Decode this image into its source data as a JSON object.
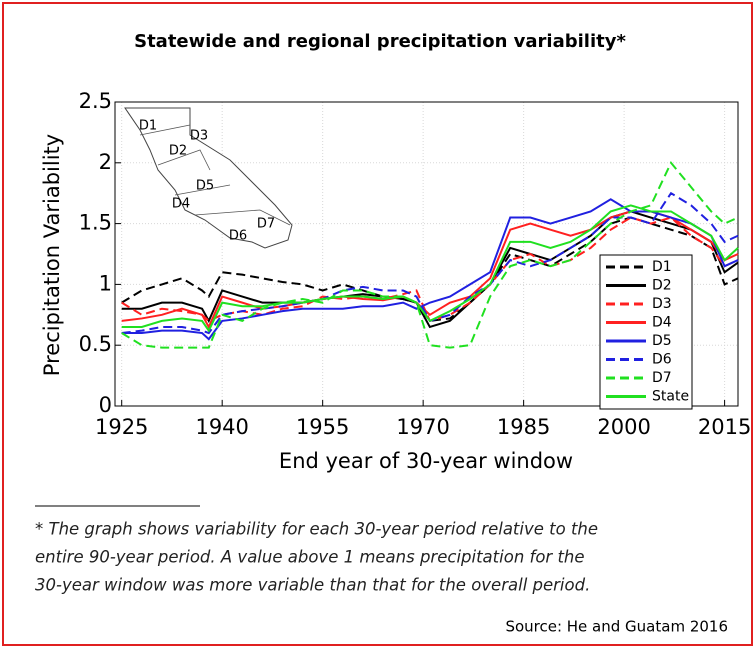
{
  "chart_data": {
    "type": "line",
    "title": "Statewide and regional precipitation variability*",
    "x_label": "End year of 30-year window",
    "y_label": "Precipitation Variability",
    "x": [
      1925,
      1928,
      1931,
      1934,
      1937,
      1938,
      1940,
      1943,
      1946,
      1949,
      1952,
      1955,
      1958,
      1961,
      1964,
      1967,
      1969,
      1971,
      1974,
      1977,
      1980,
      1983,
      1986,
      1989,
      1992,
      1995,
      1998,
      2001,
      2004,
      2007,
      2010,
      2013,
      2015,
      2017
    ],
    "xlim": [
      1924,
      2017
    ],
    "xticks": [
      1925,
      1940,
      1955,
      1970,
      1985,
      2000,
      2015
    ],
    "ylim": [
      0,
      2.5
    ],
    "yticks": [
      0,
      0.5,
      1,
      1.5,
      2,
      2.5
    ],
    "grid": true,
    "legend_position": "lower right",
    "series": [
      {
        "name": "D1",
        "color": "#000000",
        "style": "dashed",
        "values": [
          0.85,
          0.95,
          1.0,
          1.05,
          0.95,
          0.9,
          1.1,
          1.08,
          1.05,
          1.02,
          1.0,
          0.95,
          1.0,
          0.95,
          0.9,
          0.88,
          0.85,
          0.7,
          0.72,
          0.85,
          1.0,
          1.25,
          1.2,
          1.15,
          1.25,
          1.35,
          1.5,
          1.55,
          1.5,
          1.45,
          1.4,
          1.3,
          1.0,
          1.05
        ]
      },
      {
        "name": "D2",
        "color": "#000000",
        "style": "solid",
        "values": [
          0.8,
          0.8,
          0.85,
          0.85,
          0.8,
          0.7,
          0.95,
          0.9,
          0.85,
          0.85,
          0.85,
          0.88,
          0.9,
          0.92,
          0.9,
          0.88,
          0.85,
          0.65,
          0.7,
          0.85,
          1.0,
          1.3,
          1.25,
          1.2,
          1.3,
          1.4,
          1.55,
          1.6,
          1.55,
          1.5,
          1.45,
          1.35,
          1.1,
          1.18
        ]
      },
      {
        "name": "D3",
        "color": "#ff2020",
        "style": "dashed",
        "values": [
          0.85,
          0.75,
          0.8,
          0.78,
          0.75,
          0.7,
          0.75,
          0.78,
          0.75,
          0.8,
          0.82,
          0.9,
          0.88,
          0.9,
          0.88,
          0.92,
          0.95,
          0.7,
          0.75,
          0.85,
          1.0,
          1.2,
          1.25,
          1.15,
          1.2,
          1.3,
          1.45,
          1.55,
          1.5,
          1.55,
          1.4,
          1.3,
          1.15,
          1.2
        ]
      },
      {
        "name": "D4",
        "color": "#ff2020",
        "style": "solid",
        "values": [
          0.7,
          0.72,
          0.75,
          0.8,
          0.75,
          0.65,
          0.9,
          0.85,
          0.8,
          0.82,
          0.85,
          0.88,
          0.9,
          0.88,
          0.87,
          0.9,
          0.85,
          0.75,
          0.85,
          0.9,
          1.05,
          1.45,
          1.5,
          1.45,
          1.4,
          1.45,
          1.55,
          1.6,
          1.6,
          1.55,
          1.45,
          1.35,
          1.2,
          1.25
        ]
      },
      {
        "name": "D5",
        "color": "#2020e0",
        "style": "solid",
        "values": [
          0.6,
          0.6,
          0.62,
          0.62,
          0.6,
          0.55,
          0.7,
          0.72,
          0.75,
          0.78,
          0.8,
          0.8,
          0.8,
          0.82,
          0.82,
          0.85,
          0.8,
          0.85,
          0.9,
          1.0,
          1.1,
          1.55,
          1.55,
          1.5,
          1.55,
          1.6,
          1.7,
          1.6,
          1.6,
          1.55,
          1.5,
          1.4,
          1.15,
          1.2
        ]
      },
      {
        "name": "D6",
        "color": "#2020e0",
        "style": "dashed",
        "values": [
          0.6,
          0.62,
          0.65,
          0.65,
          0.62,
          0.6,
          0.75,
          0.78,
          0.8,
          0.82,
          0.85,
          0.88,
          0.95,
          0.98,
          0.95,
          0.95,
          0.9,
          0.7,
          0.75,
          0.9,
          1.0,
          1.2,
          1.15,
          1.2,
          1.3,
          1.4,
          1.55,
          1.55,
          1.5,
          1.75,
          1.65,
          1.5,
          1.35,
          1.4
        ]
      },
      {
        "name": "D7",
        "color": "#20e020",
        "style": "dashed",
        "values": [
          0.6,
          0.5,
          0.48,
          0.48,
          0.48,
          0.48,
          0.75,
          0.7,
          0.8,
          0.85,
          0.88,
          0.85,
          0.95,
          0.95,
          0.9,
          0.9,
          0.85,
          0.5,
          0.48,
          0.5,
          0.9,
          1.15,
          1.2,
          1.15,
          1.2,
          1.35,
          1.5,
          1.6,
          1.65,
          2.0,
          1.8,
          1.6,
          1.5,
          1.55
        ]
      },
      {
        "name": "State",
        "color": "#20e020",
        "style": "solid",
        "values": [
          0.65,
          0.65,
          0.7,
          0.72,
          0.7,
          0.62,
          0.85,
          0.82,
          0.82,
          0.85,
          0.85,
          0.88,
          0.9,
          0.9,
          0.88,
          0.9,
          0.85,
          0.7,
          0.78,
          0.88,
          1.0,
          1.35,
          1.35,
          1.3,
          1.35,
          1.45,
          1.6,
          1.65,
          1.6,
          1.6,
          1.5,
          1.4,
          1.2,
          1.3
        ]
      }
    ],
    "map_labels": [
      "D1",
      "D2",
      "D3",
      "D4",
      "D5",
      "D6",
      "D7"
    ],
    "footnote": [
      "* The graph shows variability for each 30-year period relative to the",
      "entire 90-year period. A value above 1 means precipitation for the",
      "30-year window was more variable than that for the overall period."
    ],
    "source": "Source: He and Guatam 2016"
  }
}
